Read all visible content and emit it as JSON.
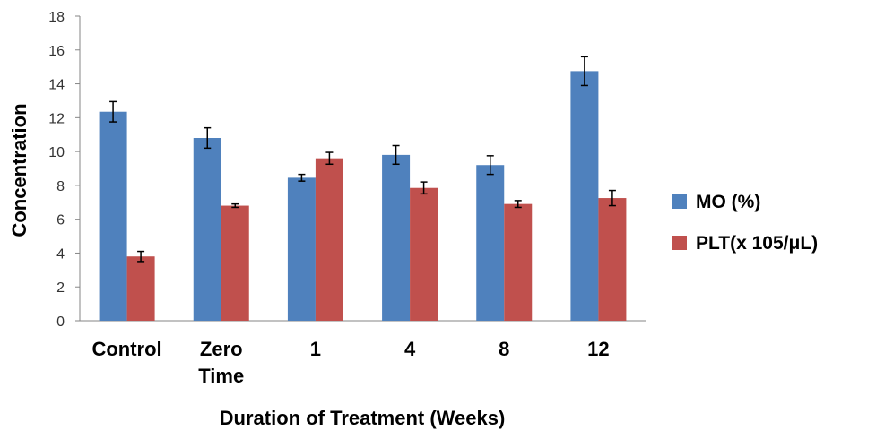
{
  "chart_data": {
    "type": "bar",
    "title": "",
    "xlabel": "Duration of Treatment (Weeks)",
    "ylabel": "Concentration",
    "ylim": [
      0,
      18
    ],
    "yticks": [
      0,
      2,
      4,
      6,
      8,
      10,
      12,
      14,
      16,
      18
    ],
    "categories": [
      [
        "Control"
      ],
      [
        "Zero",
        "Time"
      ],
      [
        "1"
      ],
      [
        "4"
      ],
      [
        "8"
      ],
      [
        "12"
      ]
    ],
    "series": [
      {
        "name": "MO (%)",
        "color": "#4f81bd",
        "values": [
          12.35,
          10.8,
          8.45,
          9.8,
          9.2,
          14.75
        ],
        "errors": [
          0.6,
          0.6,
          0.2,
          0.55,
          0.55,
          0.85
        ]
      },
      {
        "name": "PLT(x 105/μL)",
        "color": "#c0504d",
        "values": [
          3.8,
          6.8,
          9.6,
          7.85,
          6.9,
          7.25
        ],
        "errors": [
          0.3,
          0.1,
          0.35,
          0.35,
          0.2,
          0.45
        ]
      }
    ],
    "legend_position": "right",
    "grid": false
  }
}
